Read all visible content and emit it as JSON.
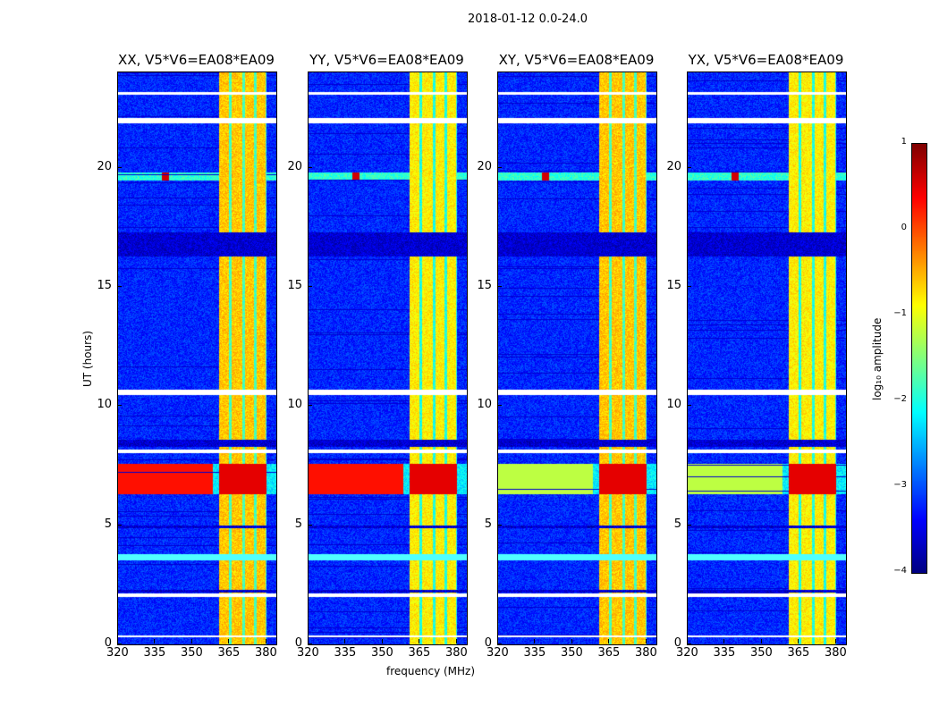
{
  "suptitle": "2018-01-12 0.0-24.0",
  "xlabel": "frequency (MHz)",
  "ylabel": "UT (hours)",
  "colorbar": {
    "label": "log₁₀ amplitude",
    "ticks": [
      "1",
      "0",
      "−1",
      "−2",
      "−3",
      "−4"
    ],
    "values": [
      1,
      0,
      -1,
      -2,
      -3,
      -4
    ],
    "vmin": -4,
    "vmax": 1,
    "colormap": "jet"
  },
  "chart_data": [
    {
      "type": "heatmap",
      "title": "XX, V5*V6=EA08*EA09"
    },
    {
      "type": "heatmap",
      "title": "YY, V5*V6=EA08*EA09"
    },
    {
      "type": "heatmap",
      "title": "XY, V5*V6=EA08*EA09"
    },
    {
      "type": "heatmap",
      "title": "YX, V5*V6=EA08*EA09"
    }
  ],
  "axes": {
    "xlim": [
      320,
      384
    ],
    "ylim": [
      0,
      24
    ],
    "xticks": [
      320,
      335,
      350,
      365,
      380
    ],
    "xtick_labels": [
      "320",
      "335",
      "350",
      "365",
      "380"
    ],
    "yticks": [
      0,
      5,
      10,
      15,
      20
    ],
    "ytick_labels": [
      "0",
      "5",
      "10",
      "15",
      "20"
    ]
  },
  "features": {
    "background_level": -3.2,
    "bright_band_mhz": [
      360.5,
      380
    ],
    "subband_edges_mhz": [
      360.5,
      365.1,
      370.5,
      375.2,
      380
    ],
    "band_level": -0.8,
    "flagged_rows_hours": [
      [
        0.3,
        0.4
      ],
      [
        2.0,
        2.15
      ],
      [
        3.55,
        3.8
      ],
      [
        8.05,
        8.2
      ],
      [
        10.5,
        10.7
      ],
      [
        21.9,
        22.1
      ],
      [
        23.1,
        23.2
      ]
    ],
    "dark_rows_hours": [
      [
        16.3,
        17.3
      ],
      [
        8.3,
        8.6
      ],
      [
        2.2,
        2.3
      ],
      [
        4.9,
        5.0
      ]
    ],
    "rfi_row_hours": [
      19.5,
      19.8
    ],
    "strong_rows_hours": [
      6.3,
      7.6
    ]
  }
}
